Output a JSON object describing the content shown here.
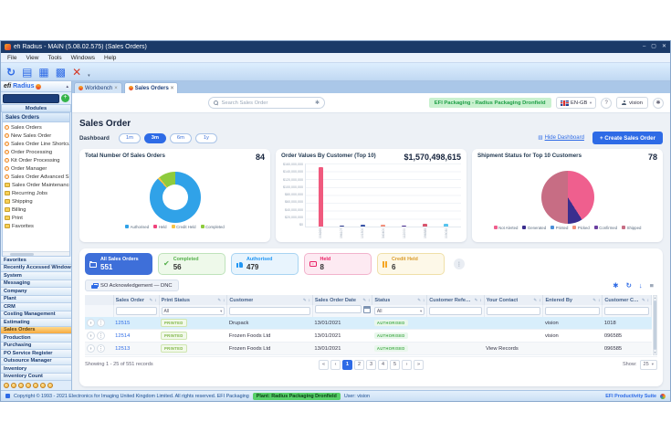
{
  "window": {
    "title": "efi Radius - MAIN (5.08.02.575) (Sales Orders)",
    "menu": [
      "File",
      "View",
      "Tools",
      "Windows",
      "Help"
    ],
    "toolbar_icons": [
      {
        "name": "refresh",
        "glyph": "↻",
        "color": "#2e6be6"
      },
      {
        "name": "workbench",
        "glyph": "▤",
        "color": "#2e6be6"
      },
      {
        "name": "bank",
        "glyph": "▦",
        "color": "#2e6be6"
      },
      {
        "name": "plant-buildings",
        "glyph": "▩",
        "color": "#2e6be6"
      },
      {
        "name": "exit",
        "glyph": "✕",
        "color": "#d43b2a"
      }
    ],
    "controls": [
      {
        "name": "minimize",
        "glyph": "–"
      },
      {
        "name": "maximize",
        "glyph": "▢"
      },
      {
        "name": "close",
        "glyph": "✕"
      }
    ],
    "tabs": [
      {
        "label": "Workbench",
        "active": false
      },
      {
        "label": "Sales Orders",
        "active": true
      }
    ]
  },
  "sidebar": {
    "brand_prefix": "efi ",
    "brand_name": "Radius",
    "modules_label": "Modules",
    "tree_header": "Sales Orders",
    "tree_items": [
      {
        "label": "Sales Orders",
        "icon": "window"
      },
      {
        "label": "New Sales Order",
        "icon": "window"
      },
      {
        "label": "Sales Order Line Shortcut",
        "icon": "window"
      },
      {
        "label": "Order Processing",
        "icon": "window"
      },
      {
        "label": "Kit Order Processing",
        "icon": "window"
      },
      {
        "label": "Order Manager",
        "icon": "window"
      },
      {
        "label": "Sales Order Advanced S...",
        "icon": "window"
      },
      {
        "label": "Sales Order Maintenance",
        "icon": "folder"
      },
      {
        "label": "Recurring Jobs",
        "icon": "folder"
      },
      {
        "label": "Shipping",
        "icon": "folder"
      },
      {
        "label": "Billing",
        "icon": "folder"
      },
      {
        "label": "Print",
        "icon": "folder"
      },
      {
        "label": "Favorites",
        "icon": "folder"
      }
    ],
    "sections": [
      "Favorites",
      "Recently Accessed Windows",
      "System",
      "Messaging",
      "Company",
      "Plant",
      "CRM",
      "Costing Management",
      "Estimating",
      "Sales Orders",
      "Production",
      "Purchasing",
      "PO Service Register",
      "Outsource Manager",
      "Inventory",
      "Inventory Count"
    ],
    "active_section": "Sales Orders",
    "quick_icon_count": 7
  },
  "topbar": {
    "search_placeholder": "Search Sales Order",
    "plant_banner": "EFI Packaging - Radius Packaging Dronfield",
    "locale": "EN-GB",
    "user": "vision"
  },
  "dashboard": {
    "title": "Sales Order",
    "label": "Dashboard",
    "periods": [
      "1m",
      "3m",
      "6m",
      "1y"
    ],
    "active_period": "3m",
    "hide_link": "Hide Dashboard",
    "create_button": "+ Create Sales Order"
  },
  "chart_data": [
    {
      "type": "donut",
      "title": "Total Number Of Sales Orders",
      "total": "84",
      "legend_position": "bottom",
      "segments": [
        {
          "label": "Authorised",
          "value": 74,
          "color": "#30a2e8"
        },
        {
          "label": "Held",
          "value": 0,
          "color": "#f0437c"
        },
        {
          "label": "Credit Held",
          "value": 1,
          "color": "#f6c344"
        },
        {
          "label": "Completed",
          "value": 9,
          "color": "#8ecb3d"
        }
      ]
    },
    {
      "type": "bar",
      "title": "Order Values By Customer (Top 10)",
      "total": "$1,570,498,615",
      "ymax": 160000000,
      "y_ticks": [
        "$160,000,000",
        "$140,000,000",
        "$120,000,000",
        "$100,000,000",
        "$80,000,000",
        "$60,000,000",
        "$40,000,000",
        "$20,000,000",
        "$0"
      ],
      "bars": [
        {
          "label": "006265",
          "value": 150000000,
          "color": "#f05a7e"
        },
        {
          "label": "096107",
          "value": 3500000,
          "color": "#2f3d8f"
        },
        {
          "label": "101500",
          "value": 3800000,
          "color": "#3a55a8"
        },
        {
          "label": "340400",
          "value": 3600000,
          "color": "#f2907b"
        },
        {
          "label": "112000",
          "value": 3400000,
          "color": "#4b2e90"
        },
        {
          "label": "096585",
          "value": 8000000,
          "color": "#d9566e"
        },
        {
          "label": "009030",
          "value": 6000000,
          "color": "#57c4ee"
        }
      ]
    },
    {
      "type": "pie",
      "title": "Shipment Status for Top 10 Customers",
      "total": "78",
      "legend_position": "bottom",
      "segments": [
        {
          "label": "Not Alerted",
          "value": 32,
          "color": "#ef5f8e"
        },
        {
          "label": "Generated",
          "value": 7,
          "color": "#3a2e8e"
        },
        {
          "label": "Printed",
          "value": 0,
          "color": "#4a90d9"
        },
        {
          "label": "Picked",
          "value": 0,
          "color": "#f2907b"
        },
        {
          "label": "Confirmed",
          "value": 0,
          "color": "#6b3fa0"
        },
        {
          "label": "Shipped",
          "value": 39,
          "color": "#c76d84"
        }
      ]
    }
  ],
  "summary_cards": [
    {
      "label": "All Sales Orders",
      "value": "551",
      "icon": "folder-card",
      "theme": "blue"
    },
    {
      "label": "Completed",
      "value": "56",
      "icon": "check",
      "theme": "green"
    },
    {
      "label": "Authorised",
      "value": "479",
      "icon": "thumb",
      "theme": "lightblue"
    },
    {
      "label": "Held",
      "value": "8",
      "icon": "held",
      "theme": "pink"
    },
    {
      "label": "Credit Held",
      "value": "6",
      "icon": "pause",
      "theme": "yellow"
    }
  ],
  "grid": {
    "print_chip": "SO Acknowledgement — DNC",
    "actions": [
      {
        "name": "settings",
        "glyph": "✱",
        "color": "#2e6be6"
      },
      {
        "name": "refresh",
        "glyph": "↻",
        "color": "#2e6be6"
      },
      {
        "name": "export-download",
        "glyph": "↓",
        "color": "#2e6be6"
      },
      {
        "name": "grid-menu",
        "glyph": "≡",
        "color": "#44597a"
      }
    ],
    "filter_all": "All",
    "columns": [
      {
        "label": "Sales Order",
        "filter": "text"
      },
      {
        "label": "Print Status",
        "filter": "select"
      },
      {
        "label": "Customer",
        "filter": "text"
      },
      {
        "label": "Sales Order Date",
        "filter": "date"
      },
      {
        "label": "Status",
        "filter": "select"
      },
      {
        "label": "Customer Refere...",
        "filter": "text"
      },
      {
        "label": "Your Contact",
        "filter": "text"
      },
      {
        "label": "Entered By",
        "filter": "text"
      },
      {
        "label": "Customer Code",
        "filter": "text"
      }
    ],
    "rows": [
      {
        "sales_order": "12515",
        "print_status": "PRINTED",
        "customer": "Drupack",
        "sales_order_date": "13/01/2021",
        "status": "AUTHORISED",
        "customer_reference": "",
        "your_contact": "",
        "entered_by": "vision",
        "customer_code": "1018",
        "selected": true
      },
      {
        "sales_order": "12514",
        "print_status": "PRINTED",
        "customer": "Frozen Foods Ltd",
        "sales_order_date": "13/01/2021",
        "status": "AUTHORISED",
        "customer_reference": "",
        "your_contact": "",
        "entered_by": "vision",
        "customer_code": "096585",
        "selected": false
      },
      {
        "sales_order": "12513",
        "print_status": "PRINTED",
        "customer": "Frozen Foods Ltd",
        "sales_order_date": "13/01/2021",
        "status": "AUTHORISED",
        "customer_reference": "",
        "your_contact": "View Records",
        "entered_by": "",
        "customer_code": "096585",
        "selected": false
      }
    ]
  },
  "pagination": {
    "summary": "Showing 1 - 25 of 551 records",
    "pages": [
      "1",
      "2",
      "3",
      "4",
      "5"
    ],
    "active_page": "1",
    "show_label": "Show:",
    "page_size": "25"
  },
  "footer": {
    "copyright": "Copyright © 1993 - 2021 Electronics for Imaging United Kingdom Limited. All rights reserved. EFI Packaging",
    "plant": "Plant: Radius Packaging Dronfield",
    "user": "User: vision",
    "suite": "EFI Productivity Suite"
  }
}
